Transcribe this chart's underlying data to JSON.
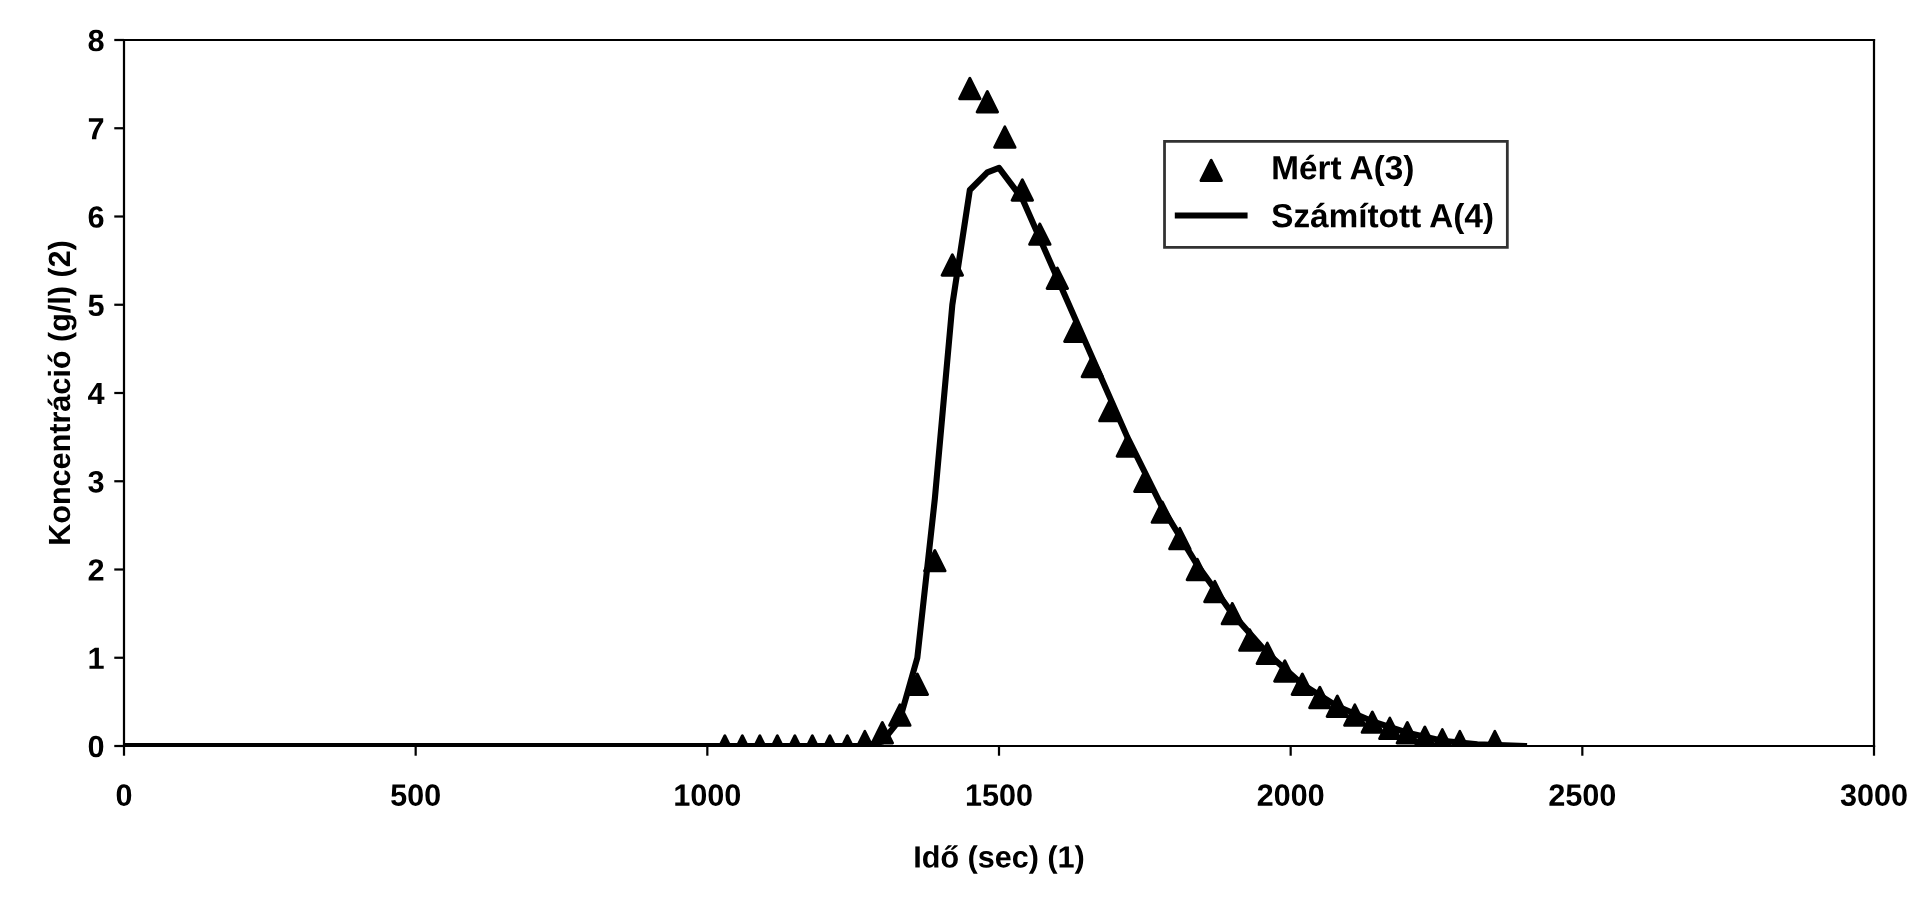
{
  "chart_data": {
    "type": "scatter",
    "xlabel": "Idő (sec) (1)",
    "ylabel": "Koncentráció (g/l) (2)",
    "xlim": [
      0,
      3000
    ],
    "xticks": [
      0,
      500,
      1000,
      1500,
      2000,
      2500,
      3000
    ],
    "ylim": [
      0,
      8
    ],
    "yticks": [
      0,
      1,
      2,
      3,
      4,
      5,
      6,
      7,
      8
    ],
    "grid": false,
    "legend": "top right",
    "series": [
      {
        "name": "Mért A(3)",
        "marker": "triangle",
        "color": "#000000",
        "x": [
          1030,
          1060,
          1090,
          1120,
          1150,
          1180,
          1210,
          1240,
          1270,
          1300,
          1330,
          1360,
          1390,
          1420,
          1450,
          1480,
          1510,
          1540,
          1570,
          1600,
          1630,
          1660,
          1690,
          1720,
          1750,
          1780,
          1810,
          1840,
          1870,
          1900,
          1930,
          1960,
          1990,
          2020,
          2050,
          2080,
          2110,
          2140,
          2170,
          2200,
          2230,
          2260,
          2290,
          2350
        ],
        "values": [
          0,
          0,
          0,
          0,
          0,
          0,
          0,
          0,
          0.05,
          0.15,
          0.35,
          0.7,
          2.1,
          5.45,
          7.45,
          7.3,
          6.9,
          6.3,
          5.8,
          5.3,
          4.7,
          4.3,
          3.8,
          3.4,
          3.0,
          2.65,
          2.35,
          2.0,
          1.75,
          1.5,
          1.2,
          1.05,
          0.85,
          0.7,
          0.55,
          0.45,
          0.35,
          0.27,
          0.2,
          0.15,
          0.1,
          0.07,
          0.05,
          0.05
        ]
      },
      {
        "name": "Számított A(4)",
        "type": "line",
        "line_style": "solid",
        "marker": "none",
        "color": "#000000",
        "x": [
          0,
          1270,
          1300,
          1330,
          1360,
          1390,
          1420,
          1450,
          1480,
          1500,
          1540,
          1600,
          1660,
          1720,
          1780,
          1840,
          1900,
          1960,
          2020,
          2080,
          2140,
          2200,
          2260,
          2320,
          2400
        ],
        "values": [
          0,
          0,
          0.05,
          0.3,
          1.0,
          2.8,
          5.0,
          6.3,
          6.5,
          6.55,
          6.2,
          5.3,
          4.4,
          3.5,
          2.7,
          2.05,
          1.5,
          1.05,
          0.7,
          0.45,
          0.28,
          0.15,
          0.06,
          0.02,
          0
        ]
      }
    ]
  }
}
